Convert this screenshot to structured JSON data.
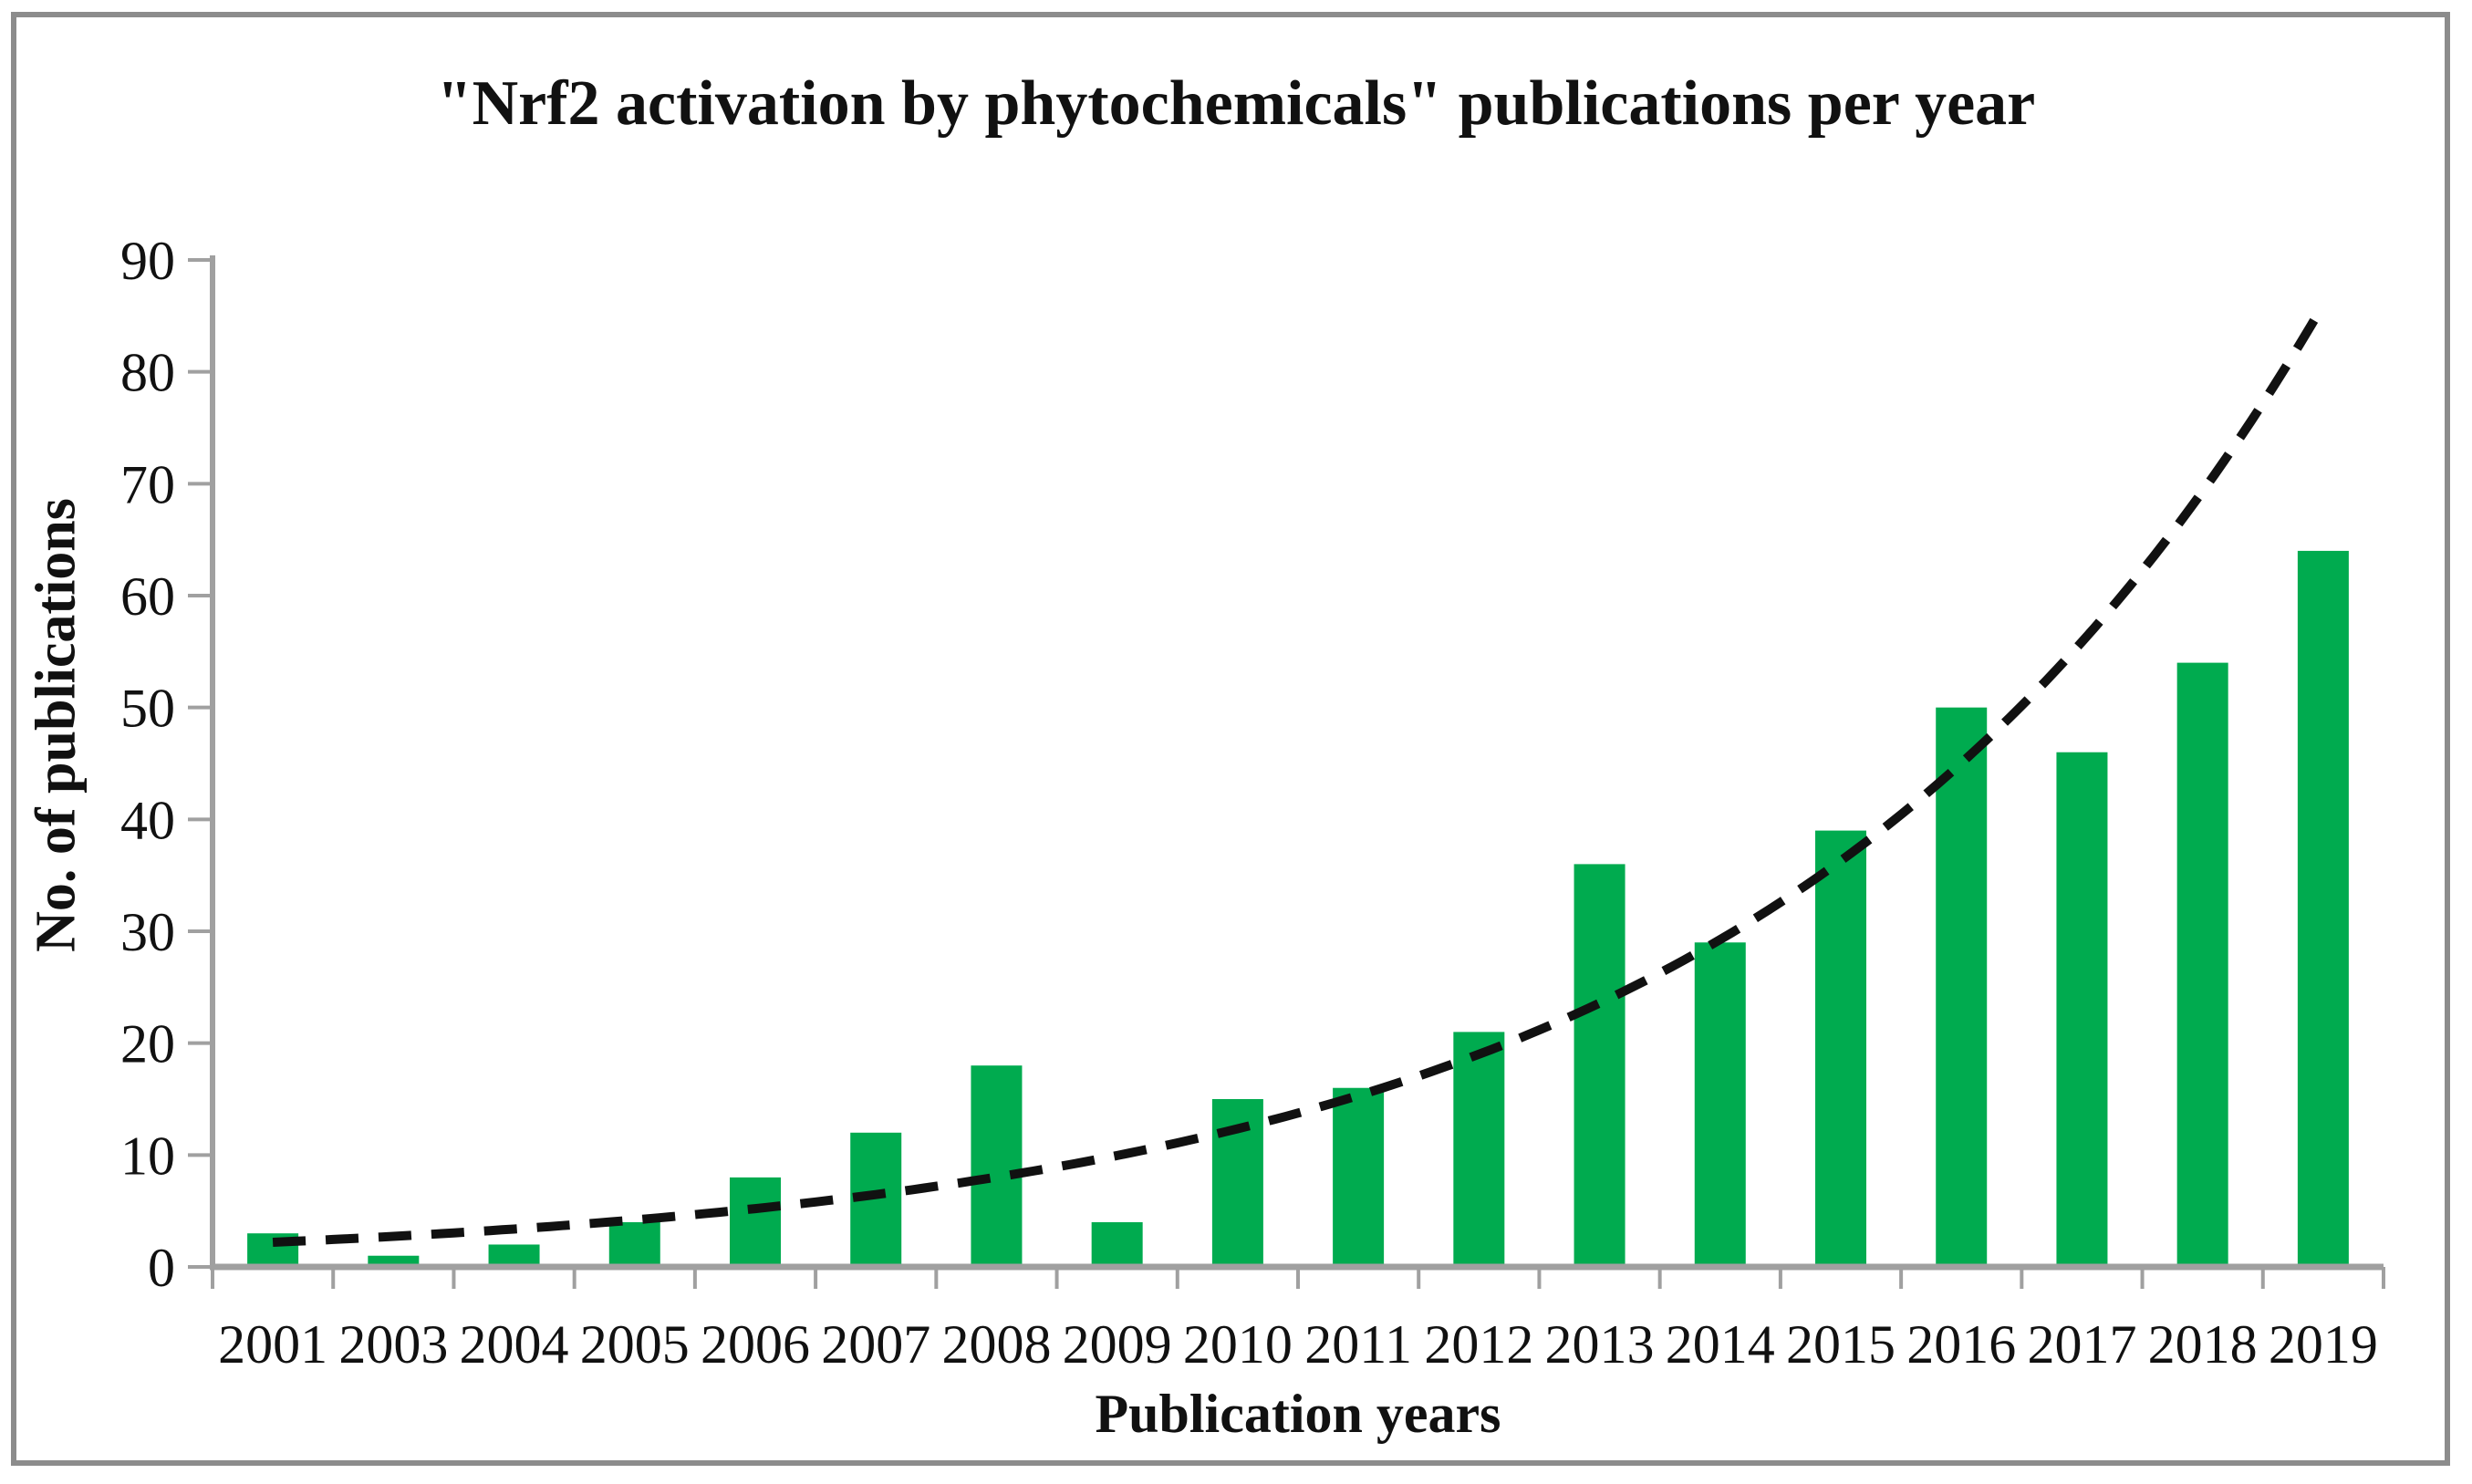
{
  "figure": {
    "title": "\"Nrf2 activation by phytochemicals\" publications per year",
    "x_axis_title": "Publication years",
    "y_axis_title": "No. of publications"
  },
  "chart_data": {
    "type": "bar",
    "title": "\"Nrf2 activation by phytochemicals\" publications per year",
    "xlabel": "Publication years",
    "ylabel": "No. of publications",
    "categories": [
      "2001",
      "2003",
      "2004",
      "2005",
      "2006",
      "2007",
      "2008",
      "2009",
      "2010",
      "2011",
      "2012",
      "2013",
      "2014",
      "2015",
      "2016",
      "2017",
      "2018",
      "2019"
    ],
    "values": [
      3,
      1,
      2,
      4,
      8,
      12,
      18,
      4,
      15,
      16,
      21,
      36,
      29,
      39,
      50,
      46,
      54,
      64
    ],
    "ylim": [
      0,
      90
    ],
    "yticks": [
      0,
      10,
      20,
      30,
      40,
      50,
      60,
      70,
      80,
      90
    ],
    "grid": false,
    "legend": "none",
    "bar_color": "#00AB4F",
    "axis_color": "#a0a0a0",
    "text_color": "#111111",
    "trendline": {
      "type": "exponential",
      "style": "dashed",
      "color": "#111111",
      "start_value": 2.2,
      "end_value": 86
    }
  }
}
